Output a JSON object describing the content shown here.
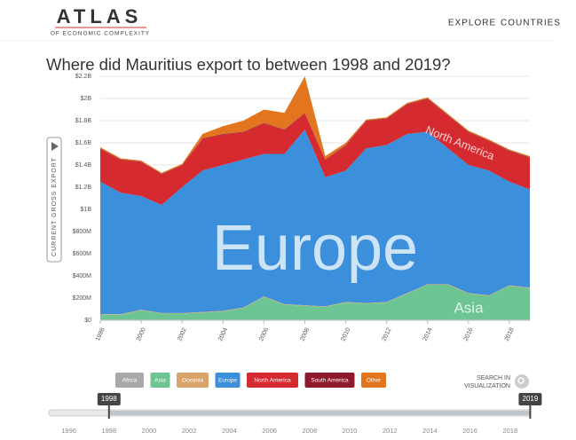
{
  "header": {
    "logo": "ATLAS",
    "logo_sub": "OF ECONOMIC COMPLEXITY",
    "nav": [
      "EXPLORE",
      "COUNTRIES"
    ]
  },
  "search_label": [
    "SEARCH IN",
    "VISUALIZATION"
  ],
  "timeline": {
    "start": 1998,
    "end": 2019,
    "lim": [
      1995,
      2020
    ],
    "ticks": [
      1996,
      1998,
      2000,
      2002,
      2004,
      2006,
      2008,
      2010,
      2012,
      2014,
      2016,
      2018
    ]
  },
  "chart_data": {
    "type": "stacked_area",
    "title": "Where did Mauritius export to between 1998 and 2019?",
    "y_label": "CURRENT GROSS EXPORT",
    "x": [
      1998,
      1999,
      2000,
      2001,
      2002,
      2003,
      2004,
      2005,
      2006,
      2007,
      2008,
      2009,
      2010,
      2011,
      2012,
      2013,
      2014,
      2015,
      2016,
      2017,
      2018,
      2019
    ],
    "xlim": [
      1998,
      2019
    ],
    "xticks": [
      1998,
      2000,
      2002,
      2004,
      2006,
      2008,
      2010,
      2012,
      2014,
      2016,
      2018
    ],
    "ylim": [
      0,
      2200
    ],
    "yticks": [
      {
        "value": 0,
        "label": "$0"
      },
      {
        "value": 200,
        "label": "$200M"
      },
      {
        "value": 400,
        "label": "$400M"
      },
      {
        "value": 600,
        "label": "$600M"
      },
      {
        "value": 800,
        "label": "$800M"
      },
      {
        "value": 1000,
        "label": "$1B"
      },
      {
        "value": 1200,
        "label": "$1.2B"
      },
      {
        "value": 1400,
        "label": "$1.4B"
      },
      {
        "value": 1600,
        "label": "$1.6B"
      },
      {
        "value": 1800,
        "label": "$1.8B"
      },
      {
        "value": 2000,
        "label": "$2B"
      },
      {
        "value": 2200,
        "label": "$2.2B"
      }
    ],
    "grid": true,
    "series": [
      {
        "name": "Africa",
        "color": "#a9a9a9",
        "values": [
          5,
          5,
          5,
          5,
          5,
          5,
          5,
          5,
          5,
          5,
          5,
          5,
          5,
          5,
          5,
          5,
          5,
          5,
          5,
          5,
          5,
          5
        ]
      },
      {
        "name": "Asia",
        "color": "#6cc593",
        "values": [
          45,
          45,
          85,
          55,
          55,
          65,
          75,
          105,
          205,
          135,
          125,
          115,
          155,
          145,
          155,
          235,
          315,
          315,
          235,
          215,
          305,
          285
        ]
      },
      {
        "name": "Oceania",
        "color": "#d9a36c",
        "values": [
          5,
          5,
          5,
          5,
          5,
          5,
          5,
          5,
          5,
          5,
          5,
          5,
          5,
          5,
          5,
          5,
          5,
          5,
          5,
          5,
          5,
          5
        ]
      },
      {
        "name": "Europe",
        "color": "#3b8fdb",
        "values": [
          1195,
          1095,
          1025,
          975,
          1135,
          1275,
          1315,
          1335,
          1285,
          1355,
          1585,
          1165,
          1185,
          1395,
          1415,
          1435,
          1375,
          1225,
          1155,
          1125,
          935,
          885
        ]
      },
      {
        "name": "North America",
        "color": "#d52a30",
        "values": [
          295,
          295,
          305,
          275,
          195,
          285,
          275,
          245,
          275,
          215,
          145,
          155,
          225,
          245,
          235,
          265,
          295,
          295,
          295,
          265,
          275,
          285
        ]
      },
      {
        "name": "South America",
        "color": "#8d1b2b",
        "values": [
          5,
          5,
          5,
          5,
          5,
          5,
          5,
          5,
          5,
          5,
          5,
          5,
          5,
          5,
          5,
          5,
          5,
          5,
          5,
          5,
          5,
          5
        ]
      },
      {
        "name": "Other",
        "color": "#e2751d",
        "values": [
          10,
          10,
          10,
          10,
          10,
          40,
          70,
          100,
          120,
          150,
          330,
          30,
          20,
          10,
          10,
          10,
          10,
          10,
          10,
          10,
          10,
          10
        ]
      }
    ]
  }
}
